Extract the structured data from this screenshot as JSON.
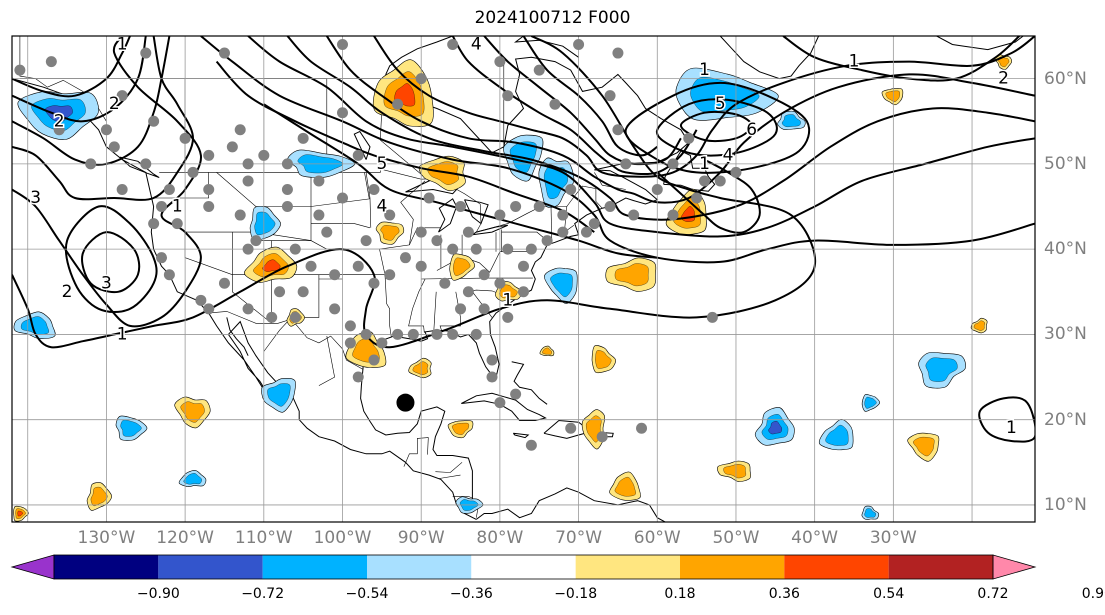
{
  "title": "2024100712 F000",
  "map": {
    "projection": "PlateCarree",
    "lon_range": [
      -142,
      -12
    ],
    "lat_range": [
      8,
      65
    ],
    "coastlines": true,
    "country_borders": true,
    "state_borders": true,
    "gridlines": true
  },
  "lon_labels": [
    {
      "lon": -130,
      "text": "130°W"
    },
    {
      "lon": -120,
      "text": "120°W"
    },
    {
      "lon": -110,
      "text": "110°W"
    },
    {
      "lon": -100,
      "text": "100°W"
    },
    {
      "lon": -90,
      "text": "90°W"
    },
    {
      "lon": -80,
      "text": "80°W"
    },
    {
      "lon": -70,
      "text": "70°W"
    },
    {
      "lon": -60,
      "text": "60°W"
    },
    {
      "lon": -50,
      "text": "50°W"
    },
    {
      "lon": -40,
      "text": "40°W"
    },
    {
      "lon": -30,
      "text": "30°W"
    }
  ],
  "lat_labels": [
    {
      "lat": 60,
      "text": "60°N"
    },
    {
      "lat": 50,
      "text": "50°N"
    },
    {
      "lat": 40,
      "text": "40°N"
    },
    {
      "lat": 30,
      "text": "30°N"
    },
    {
      "lat": 20,
      "text": "20°N"
    },
    {
      "lat": 10,
      "text": "10°N"
    }
  ],
  "colorbar": {
    "extend": "both",
    "bounds": [
      -0.9,
      -0.72,
      -0.54,
      -0.36,
      -0.18,
      0.18,
      0.36,
      0.54,
      0.72,
      0.9
    ],
    "colors": [
      "#9933cc",
      "#000080",
      "#3355cc",
      "#00b2ff",
      "#a8e0ff",
      "#ffffff",
      "#ffe680",
      "#ffa500",
      "#ff4500",
      "#b22222",
      "#ff88aa"
    ],
    "tick_labels": [
      "−0.90",
      "−0.72",
      "−0.54",
      "−0.36",
      "−0.18",
      "0.18",
      "0.36",
      "0.54",
      "0.72",
      "0.90"
    ]
  },
  "contour_labels": [
    {
      "text": "1",
      "lon": -128,
      "lat": 64
    },
    {
      "text": "2",
      "lon": -129,
      "lat": 57
    },
    {
      "text": "2",
      "lon": -136,
      "lat": 55
    },
    {
      "text": "3",
      "lon": -139,
      "lat": 46
    },
    {
      "text": "1",
      "lon": -121,
      "lat": 45
    },
    {
      "text": "2",
      "lon": -135,
      "lat": 35
    },
    {
      "text": "3",
      "lon": -130,
      "lat": 36
    },
    {
      "text": "1",
      "lon": -128,
      "lat": 30
    },
    {
      "text": "5",
      "lon": -95,
      "lat": 50
    },
    {
      "text": "4",
      "lon": -95,
      "lat": 45
    },
    {
      "text": "4",
      "lon": -83,
      "lat": 64
    },
    {
      "text": "1",
      "lon": -79,
      "lat": 34
    },
    {
      "text": "1",
      "lon": -54,
      "lat": 61
    },
    {
      "text": "5",
      "lon": -52,
      "lat": 57
    },
    {
      "text": "6",
      "lon": -48,
      "lat": 54
    },
    {
      "text": "4",
      "lon": -51,
      "lat": 51
    },
    {
      "text": "1",
      "lon": -54,
      "lat": 50
    },
    {
      "text": "1",
      "lon": -35,
      "lat": 62
    },
    {
      "text": "2",
      "lon": -16,
      "lat": 60
    },
    {
      "text": "1",
      "lon": -15,
      "lat": 19
    }
  ],
  "markers": {
    "large_black_dot": {
      "lon": -92,
      "lat": 22
    },
    "gray_stations": [
      [
        -141,
        61
      ],
      [
        -137,
        62
      ],
      [
        -125,
        63
      ],
      [
        -115,
        63
      ],
      [
        -100,
        64
      ],
      [
        -86,
        64
      ],
      [
        -70,
        64
      ],
      [
        -65,
        63
      ],
      [
        -80,
        62
      ],
      [
        -75,
        61
      ],
      [
        -90,
        60
      ],
      [
        -79,
        58
      ],
      [
        -93,
        57
      ],
      [
        -100,
        56
      ],
      [
        -98,
        51
      ],
      [
        -105,
        53
      ],
      [
        -110,
        51
      ],
      [
        -113,
        54
      ],
      [
        -120,
        53
      ],
      [
        -124,
        55
      ],
      [
        -128,
        58
      ],
      [
        -130,
        54
      ],
      [
        -132,
        50
      ],
      [
        -129,
        52
      ],
      [
        -125,
        50
      ],
      [
        -117,
        51
      ],
      [
        -114,
        52
      ],
      [
        -112,
        50
      ],
      [
        -107,
        50
      ],
      [
        -103,
        48
      ],
      [
        -100,
        46
      ],
      [
        -96,
        47
      ],
      [
        -94,
        44
      ],
      [
        -89,
        46
      ],
      [
        -85,
        45
      ],
      [
        -84,
        42
      ],
      [
        -80,
        44
      ],
      [
        -78,
        45
      ],
      [
        -75,
        45
      ],
      [
        -71,
        47
      ],
      [
        -66,
        45
      ],
      [
        -60,
        47
      ],
      [
        -58,
        44
      ],
      [
        -55,
        46
      ],
      [
        -63,
        44
      ],
      [
        -52,
        48
      ],
      [
        -54,
        48
      ],
      [
        -119,
        49
      ],
      [
        -117,
        47
      ],
      [
        -112,
        48
      ],
      [
        -107,
        47
      ],
      [
        -122,
        47
      ],
      [
        -123,
        45
      ],
      [
        -124,
        43
      ],
      [
        -123,
        39
      ],
      [
        -122,
        37
      ],
      [
        -118,
        34
      ],
      [
        -117,
        33
      ],
      [
        -112,
        33
      ],
      [
        -109,
        32
      ],
      [
        -106,
        32
      ],
      [
        -101,
        33
      ],
      [
        -99,
        31
      ],
      [
        -97,
        30
      ],
      [
        -95,
        29
      ],
      [
        -93,
        30
      ],
      [
        -91,
        30
      ],
      [
        -88,
        30
      ],
      [
        -86,
        30
      ],
      [
        -83,
        30
      ],
      [
        -81,
        27
      ],
      [
        -81,
        25
      ],
      [
        -80,
        22
      ],
      [
        -78,
        23
      ],
      [
        -76,
        17
      ],
      [
        -71,
        19
      ],
      [
        -67,
        18
      ],
      [
        -62,
        19
      ],
      [
        -53,
        32
      ],
      [
        -115,
        36
      ],
      [
        -112,
        40
      ],
      [
        -111,
        41
      ],
      [
        -106,
        40
      ],
      [
        -104,
        38
      ],
      [
        -101,
        37
      ],
      [
        -98,
        38
      ],
      [
        -96,
        36
      ],
      [
        -94,
        37
      ],
      [
        -90,
        38
      ],
      [
        -87,
        36
      ],
      [
        -84,
        35
      ],
      [
        -80,
        36
      ],
      [
        -77,
        38
      ],
      [
        -76,
        40
      ],
      [
        -74,
        41
      ],
      [
        -72,
        42
      ],
      [
        -88,
        41
      ],
      [
        -86,
        40
      ],
      [
        -83,
        40
      ],
      [
        -97,
        41
      ],
      [
        -92,
        39
      ],
      [
        -90,
        42
      ],
      [
        -117,
        45
      ],
      [
        -107,
        45
      ],
      [
        -103,
        44
      ],
      [
        -108,
        35
      ],
      [
        -105,
        35
      ],
      [
        -99,
        29
      ],
      [
        -96,
        27
      ],
      [
        -98,
        25
      ],
      [
        -85,
        33
      ],
      [
        -82,
        33
      ],
      [
        -79,
        32
      ],
      [
        -77,
        35
      ],
      [
        -79,
        40
      ],
      [
        -82,
        37
      ],
      [
        -102,
        42
      ],
      [
        -113,
        44
      ],
      [
        -121,
        43
      ],
      [
        -128,
        47
      ],
      [
        -136,
        54
      ],
      [
        -58,
        50
      ],
      [
        -64,
        50
      ],
      [
        -73,
        57
      ],
      [
        -66,
        58
      ],
      [
        -56,
        53
      ],
      [
        -50,
        49
      ],
      [
        -68,
        43
      ],
      [
        -69,
        42
      ],
      [
        -72,
        44
      ],
      [
        -65,
        54
      ]
    ]
  },
  "anomaly_patches": [
    {
      "lon": -136,
      "lat": 56,
      "rx": 4.5,
      "ry": 3.0,
      "levels": [
        "#a8e0ff",
        "#00b2ff",
        "#3355cc"
      ]
    },
    {
      "lon": -103,
      "lat": 50,
      "rx": 4.0,
      "ry": 1.5,
      "levels": [
        "#a8e0ff",
        "#00b2ff"
      ]
    },
    {
      "lon": -110,
      "lat": 43,
      "rx": 2.0,
      "ry": 1.8,
      "levels": [
        "#a8e0ff",
        "#00b2ff"
      ]
    },
    {
      "lon": -109,
      "lat": 38,
      "rx": 3.0,
      "ry": 2.0,
      "levels": [
        "#ffe680",
        "#ffa500",
        "#ff4500"
      ]
    },
    {
      "lon": -92,
      "lat": 58,
      "rx": 3.5,
      "ry": 4.0,
      "levels": [
        "#ffe680",
        "#ffa500",
        "#ff4500"
      ]
    },
    {
      "lon": -87,
      "lat": 49,
      "rx": 3.0,
      "ry": 1.8,
      "levels": [
        "#ffe680",
        "#ffa500"
      ]
    },
    {
      "lon": -77,
      "lat": 51,
      "rx": 2.5,
      "ry": 2.5,
      "levels": [
        "#a8e0ff",
        "#00b2ff"
      ]
    },
    {
      "lon": -73,
      "lat": 48,
      "rx": 2.0,
      "ry": 3.0,
      "levels": [
        "#a8e0ff",
        "#00b2ff"
      ]
    },
    {
      "lon": -52,
      "lat": 58,
      "rx": 6.0,
      "ry": 3.0,
      "levels": [
        "#a8e0ff",
        "#00b2ff"
      ]
    },
    {
      "lon": -43,
      "lat": 55,
      "rx": 1.8,
      "ry": 1.0,
      "levels": [
        "#a8e0ff",
        "#00b2ff"
      ]
    },
    {
      "lon": -56,
      "lat": 44,
      "rx": 2.5,
      "ry": 2.5,
      "levels": [
        "#ffe680",
        "#ffa500",
        "#ff4500"
      ]
    },
    {
      "lon": -63,
      "lat": 37,
      "rx": 3.0,
      "ry": 2.0,
      "levels": [
        "#ffe680",
        "#ffa500"
      ]
    },
    {
      "lon": -72,
      "lat": 36,
      "rx": 2.0,
      "ry": 2.0,
      "levels": [
        "#a8e0ff",
        "#00b2ff"
      ]
    },
    {
      "lon": -94,
      "lat": 42,
      "rx": 1.8,
      "ry": 1.2,
      "levels": [
        "#ffe680",
        "#ffa500"
      ]
    },
    {
      "lon": -85,
      "lat": 38,
      "rx": 1.5,
      "ry": 1.5,
      "levels": [
        "#ffe680",
        "#ffa500"
      ]
    },
    {
      "lon": -79,
      "lat": 35,
      "rx": 1.5,
      "ry": 1.2,
      "levels": [
        "#ffe680",
        "#ffa500"
      ]
    },
    {
      "lon": -97,
      "lat": 28,
      "rx": 2.5,
      "ry": 2.0,
      "levels": [
        "#ffe680",
        "#ffa500"
      ]
    },
    {
      "lon": -90,
      "lat": 26,
      "rx": 1.5,
      "ry": 1.0,
      "levels": [
        "#ffe680",
        "#ffa500"
      ]
    },
    {
      "lon": -108,
      "lat": 23,
      "rx": 2.0,
      "ry": 2.0,
      "levels": [
        "#a8e0ff",
        "#00b2ff"
      ]
    },
    {
      "lon": -119,
      "lat": 21,
      "rx": 2.0,
      "ry": 1.8,
      "levels": [
        "#ffe680",
        "#ffa500"
      ]
    },
    {
      "lon": -127,
      "lat": 19,
      "rx": 2.0,
      "ry": 1.3,
      "levels": [
        "#a8e0ff",
        "#00b2ff"
      ]
    },
    {
      "lon": -131,
      "lat": 11,
      "rx": 1.5,
      "ry": 1.5,
      "levels": [
        "#ffe680",
        "#ffa500"
      ]
    },
    {
      "lon": -119,
      "lat": 13,
      "rx": 1.5,
      "ry": 1.0,
      "levels": [
        "#a8e0ff",
        "#00b2ff"
      ]
    },
    {
      "lon": -139,
      "lat": 31,
      "rx": 2.5,
      "ry": 1.5,
      "levels": [
        "#a8e0ff",
        "#00b2ff"
      ]
    },
    {
      "lon": -68,
      "lat": 19,
      "rx": 1.5,
      "ry": 2.0,
      "levels": [
        "#ffe680",
        "#ffa500"
      ]
    },
    {
      "lon": -85,
      "lat": 19,
      "rx": 1.5,
      "ry": 1.0,
      "levels": [
        "#ffe680",
        "#ffa500"
      ]
    },
    {
      "lon": -84,
      "lat": 10,
      "rx": 1.5,
      "ry": 1.0,
      "levels": [
        "#a8e0ff",
        "#00b2ff"
      ]
    },
    {
      "lon": -67,
      "lat": 27,
      "rx": 1.5,
      "ry": 1.5,
      "levels": [
        "#ffe680",
        "#ffa500"
      ]
    },
    {
      "lon": -45,
      "lat": 19,
      "rx": 2.5,
      "ry": 2.0,
      "levels": [
        "#a8e0ff",
        "#00b2ff",
        "#3355cc"
      ]
    },
    {
      "lon": -37,
      "lat": 18,
      "rx": 2.0,
      "ry": 1.8,
      "levels": [
        "#a8e0ff",
        "#00b2ff"
      ]
    },
    {
      "lon": -50,
      "lat": 14,
      "rx": 2.0,
      "ry": 1.2,
      "levels": [
        "#ffe680",
        "#ffa500"
      ]
    },
    {
      "lon": -26,
      "lat": 17,
      "rx": 2.0,
      "ry": 1.5,
      "levels": [
        "#ffe680",
        "#ffa500"
      ]
    },
    {
      "lon": -24,
      "lat": 26,
      "rx": 3.0,
      "ry": 2.0,
      "levels": [
        "#a8e0ff",
        "#00b2ff"
      ]
    },
    {
      "lon": -33,
      "lat": 22,
      "rx": 1.0,
      "ry": 1.0,
      "levels": [
        "#a8e0ff",
        "#00b2ff"
      ]
    },
    {
      "lon": -33,
      "lat": 9,
      "rx": 1.0,
      "ry": 0.8,
      "levels": [
        "#a8e0ff",
        "#00b2ff"
      ]
    },
    {
      "lon": -64,
      "lat": 12,
      "rx": 2.0,
      "ry": 1.5,
      "levels": [
        "#ffe680",
        "#ffa500"
      ]
    },
    {
      "lon": -19,
      "lat": 31,
      "rx": 1.0,
      "ry": 0.8,
      "levels": [
        "#ffe680",
        "#ffa500"
      ]
    },
    {
      "lon": -30,
      "lat": 58,
      "rx": 1.2,
      "ry": 1.0,
      "levels": [
        "#ffe680",
        "#ffa500"
      ]
    },
    {
      "lon": -16,
      "lat": 62,
      "rx": 1.0,
      "ry": 0.8,
      "levels": [
        "#ffe680",
        "#ffa500"
      ]
    },
    {
      "lon": -141,
      "lat": 9,
      "rx": 1.0,
      "ry": 0.8,
      "levels": [
        "#ffe680",
        "#ffa500",
        "#ff4500"
      ]
    },
    {
      "lon": -106,
      "lat": 32,
      "rx": 1.0,
      "ry": 1.0,
      "levels": [
        "#ffe680",
        "#ffa500"
      ]
    },
    {
      "lon": -74,
      "lat": 28,
      "rx": 0.8,
      "ry": 0.6,
      "levels": [
        "#ffe680",
        "#ffa500"
      ]
    }
  ]
}
